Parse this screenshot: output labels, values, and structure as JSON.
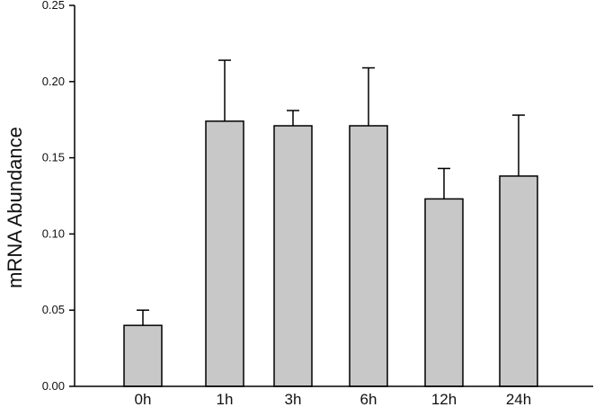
{
  "chart_data": {
    "type": "bar",
    "title": "",
    "xlabel": "",
    "ylabel": "mRNA Abundance",
    "categories": [
      "0h",
      "1h",
      "3h",
      "6h",
      "12h",
      "24h"
    ],
    "values": [
      0.04,
      0.174,
      0.171,
      0.171,
      0.123,
      0.138
    ],
    "error_upper": [
      0.01,
      0.04,
      0.01,
      0.038,
      0.02,
      0.04
    ],
    "ylim": [
      0.0,
      0.25
    ],
    "yticks": [
      0.0,
      0.05,
      0.1,
      0.15,
      0.2,
      0.25
    ],
    "ytick_labels": [
      "0.00",
      "0.05",
      "0.10",
      "0.15",
      "0.20",
      "0.25"
    ],
    "grid": false,
    "bar_color": "#c8c8c8",
    "edge_color": "#000000"
  }
}
